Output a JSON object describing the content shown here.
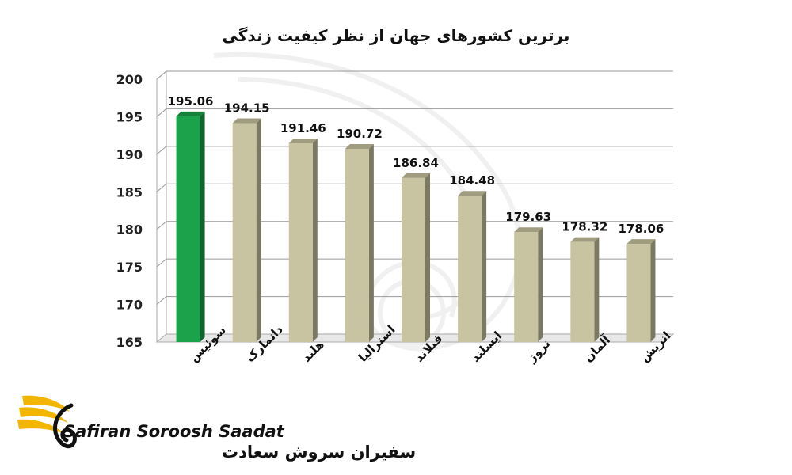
{
  "chart_data": {
    "type": "bar",
    "title": "برترین کشورهای جهان از نظر کیفیت زندگی",
    "xlabel": "",
    "ylabel": "",
    "categories": [
      "سوئیس",
      "دانمارک",
      "هلند",
      "استرالیا",
      "فنلاند",
      "ایسلند",
      "نروژ",
      "آلمان",
      "اتریش"
    ],
    "values": [
      195.06,
      194.15,
      191.46,
      190.72,
      186.84,
      184.48,
      179.63,
      178.32,
      178.06
    ],
    "value_labels": [
      "195.06",
      "194.15",
      "191.46",
      "190.72",
      "186.84",
      "184.48",
      "179.63",
      "178.32",
      "178.06"
    ],
    "ylim": [
      165,
      200
    ],
    "yticks": [
      "165",
      "170",
      "175",
      "180",
      "185",
      "190",
      "195",
      "200"
    ],
    "grid": true,
    "highlight_color": "#1aa34a",
    "bar_color": "#c8c3a0"
  },
  "logo": {
    "latin_text": "Safiran Soroosh Saadat",
    "persian_text": "سفیران سروش سعادت"
  }
}
